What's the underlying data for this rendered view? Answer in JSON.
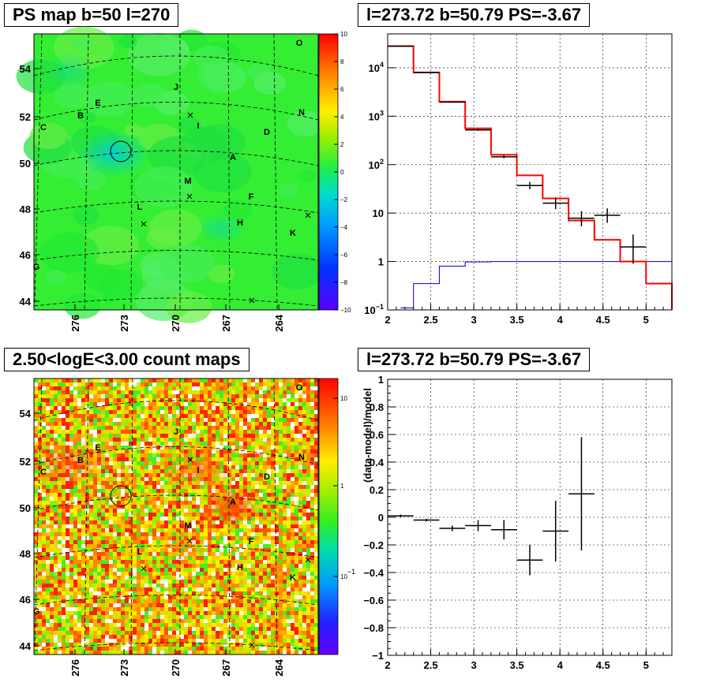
{
  "chart_data": [
    {
      "type": "heatmap",
      "title": "PS map b=50 l=270",
      "x_ticks": [
        "276",
        "273",
        "270",
        "267",
        "264"
      ],
      "y_ticks": [
        "54",
        "52",
        "50",
        "48",
        "46",
        "44"
      ],
      "colorbar_ticks": [
        "10",
        "8",
        "6",
        "4",
        "2",
        "0",
        "−2",
        "−4",
        "−6",
        "−8",
        "−10"
      ],
      "colorbar_range": [
        -10,
        10
      ],
      "sources": [
        "O",
        "J",
        "E",
        "B",
        "C",
        "I",
        "N",
        "D",
        "A",
        "M",
        "F",
        "L",
        "H",
        "K",
        "G"
      ]
    },
    {
      "type": "line",
      "title": "l=273.72 b=50.79 PS=-3.67",
      "log_y": true,
      "xlim": [
        2,
        5.3
      ],
      "ylim": [
        0.1,
        50000
      ],
      "x_ticks": [
        "2",
        "2.5",
        "3",
        "3.5",
        "4",
        "4.5",
        "5"
      ],
      "y_ticks": [
        {
          "v": 10000,
          "b": "10",
          "e": "4"
        },
        {
          "v": 1000,
          "b": "10",
          "e": "3"
        },
        {
          "v": 100,
          "b": "10",
          "e": "2"
        },
        {
          "v": 10,
          "b": "10",
          "e": ""
        },
        {
          "v": 1,
          "b": "1",
          "e": ""
        },
        {
          "v": 0.1,
          "b": "10",
          "e": "−1"
        }
      ],
      "model_total": {
        "color": "#ff0000",
        "edges": [
          2.0,
          2.3,
          2.6,
          2.9,
          3.2,
          3.5,
          3.8,
          4.1,
          4.4,
          4.7,
          5.0,
          5.3
        ],
        "values": [
          28000,
          8000,
          2000,
          560,
          160,
          60,
          20,
          7,
          2.8,
          1.0,
          0.35
        ]
      },
      "point_source": {
        "color": "#0000cc",
        "edges": [
          2.15,
          2.3,
          2.6,
          2.9,
          3.2,
          3.5,
          3.8,
          4.1,
          4.4,
          4.7,
          5.0,
          5.3
        ],
        "values": [
          0.11,
          0.35,
          0.8,
          0.98,
          1.0,
          1.0,
          1.0,
          1.0,
          1.0,
          1.0,
          1.0
        ]
      },
      "data": {
        "color": "#000000",
        "points": [
          {
            "x": 2.15,
            "y": 28000,
            "xerr": 0.15,
            "lo": 27500,
            "hi": 28500
          },
          {
            "x": 2.45,
            "y": 8000,
            "xerr": 0.15,
            "lo": 7900,
            "hi": 8100
          },
          {
            "x": 2.75,
            "y": 1950,
            "xerr": 0.15,
            "lo": 1900,
            "hi": 2000
          },
          {
            "x": 3.05,
            "y": 520,
            "xerr": 0.15,
            "lo": 500,
            "hi": 545
          },
          {
            "x": 3.35,
            "y": 145,
            "xerr": 0.15,
            "lo": 135,
            "hi": 157
          },
          {
            "x": 3.65,
            "y": 37,
            "xerr": 0.15,
            "lo": 31,
            "hi": 44
          },
          {
            "x": 3.95,
            "y": 16,
            "xerr": 0.15,
            "lo": 12,
            "hi": 21
          },
          {
            "x": 4.25,
            "y": 7.8,
            "xerr": 0.15,
            "lo": 5.3,
            "hi": 11
          },
          {
            "x": 4.55,
            "y": 9,
            "xerr": 0.15,
            "lo": 6.3,
            "hi": 12.5
          },
          {
            "x": 4.85,
            "y": 2.0,
            "xerr": 0.15,
            "lo": 0.9,
            "hi": 3.6
          }
        ]
      }
    },
    {
      "type": "heatmap",
      "title": "2.50<logE<3.00 count maps",
      "x_ticks": [
        "276",
        "273",
        "270",
        "267",
        "264"
      ],
      "y_ticks": [
        "54",
        "52",
        "50",
        "48",
        "46",
        "44"
      ],
      "colorbar_ticks": [
        {
          "b": "10",
          "e": ""
        },
        {
          "b": "1",
          "e": ""
        },
        {
          "b": "10",
          "e": "−1"
        }
      ],
      "colorbar_log": true,
      "sources": [
        "O",
        "J",
        "E",
        "B",
        "C",
        "I",
        "N",
        "D",
        "A",
        "M",
        "F",
        "L",
        "H",
        "K",
        "G"
      ]
    },
    {
      "type": "scatter",
      "title": "l=273.72 b=50.79 PS=-3.67",
      "ylabel": "(data-model)/model",
      "xlim": [
        2,
        5.3
      ],
      "ylim": [
        -1,
        1
      ],
      "x_ticks": [
        "2",
        "2.5",
        "3",
        "3.5",
        "4",
        "4.5",
        "5"
      ],
      "y_ticks": [
        "1",
        "0.8",
        "0.6",
        "0.4",
        "0.2",
        "0",
        "−0.2",
        "−0.4",
        "−0.6",
        "−0.8",
        "−1"
      ],
      "points": [
        {
          "x": 2.15,
          "y": 0.01,
          "xerr": 0.15,
          "yerr": 0.01
        },
        {
          "x": 2.45,
          "y": -0.02,
          "xerr": 0.15,
          "yerr": 0.01
        },
        {
          "x": 2.75,
          "y": -0.08,
          "xerr": 0.15,
          "yerr": 0.02
        },
        {
          "x": 3.05,
          "y": -0.06,
          "xerr": 0.15,
          "yerr": 0.04
        },
        {
          "x": 3.35,
          "y": -0.09,
          "xerr": 0.15,
          "yerr": 0.07
        },
        {
          "x": 3.65,
          "y": -0.31,
          "xerr": 0.15,
          "yerr": 0.11
        },
        {
          "x": 3.95,
          "y": -0.1,
          "xerr": 0.15,
          "yerr": 0.22
        },
        {
          "x": 4.25,
          "y": 0.17,
          "xerr": 0.15,
          "yerr": 0.41
        }
      ]
    }
  ]
}
